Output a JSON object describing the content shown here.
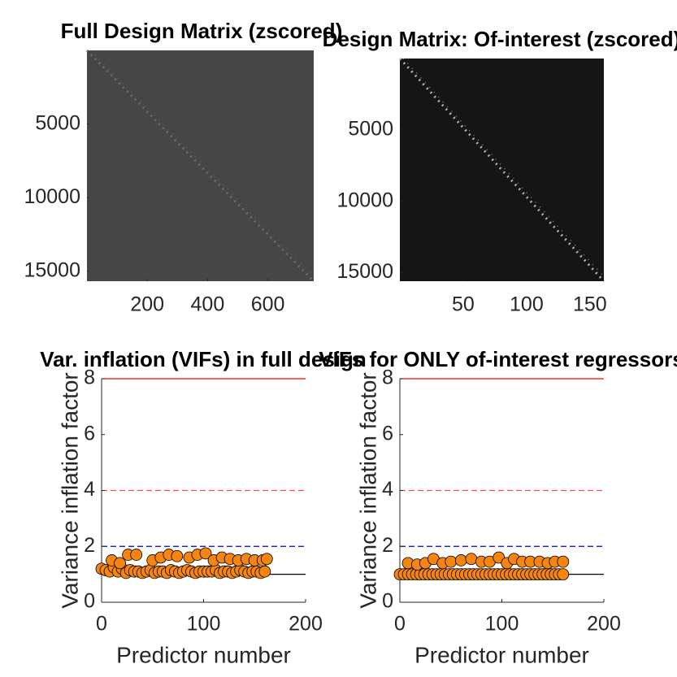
{
  "chart_data": [
    {
      "type": "image",
      "title": "Full Design Matrix (zscored)",
      "xlim": [
        0,
        752
      ],
      "ylim": [
        0,
        15660
      ],
      "y_reversed": true,
      "xticks": [
        200,
        400,
        600
      ],
      "yticks": [
        5000,
        10000,
        15000
      ],
      "color": "#464646",
      "diagonal_color": "#6a6a6a"
    },
    {
      "type": "image",
      "title": "Design Matrix: Of-interest (zscored)",
      "xlim": [
        0,
        161
      ],
      "ylim": [
        0,
        15600
      ],
      "y_reversed": true,
      "xticks": [
        50,
        100,
        150
      ],
      "yticks": [
        5000,
        10000,
        15000
      ],
      "color": "#151515",
      "diagonal_color": "#b0b0b0"
    },
    {
      "type": "scatter",
      "title": "Var. inflation (VIFs) in full design",
      "x_label": "Predictor number",
      "y_label": "Variance inflation factor",
      "xlim": [
        0,
        200
      ],
      "ylim": [
        0,
        8
      ],
      "xticks": [
        0,
        100,
        200
      ],
      "yticks": [
        0,
        2,
        4,
        6,
        8
      ],
      "color": "#f5850f",
      "edgecolor": "#000000",
      "reference_lines": [
        {
          "value": 8,
          "color": "#ff0000",
          "style": "solid"
        },
        {
          "value": 4,
          "color": "#ff4d4d",
          "style": "dashed"
        },
        {
          "value": 2,
          "color": "#0000cc",
          "style": "dashed"
        },
        {
          "value": 1,
          "color": "#000000",
          "style": "solid"
        }
      ],
      "x": [
        0,
        4,
        8,
        12,
        16,
        20,
        24,
        28,
        32,
        36,
        40,
        44,
        48,
        52,
        56,
        60,
        64,
        68,
        72,
        76,
        80,
        84,
        88,
        92,
        96,
        100,
        104,
        108,
        112,
        116,
        120,
        124,
        128,
        132,
        136,
        140,
        144,
        148,
        152,
        156,
        160,
        10,
        18,
        26,
        34,
        50,
        58,
        66,
        74,
        86,
        94,
        102,
        110,
        118,
        126,
        134,
        142,
        150,
        158,
        162
      ],
      "values": [
        1.2,
        1.15,
        1.1,
        1.25,
        1.1,
        1.2,
        1.05,
        1.15,
        1.1,
        1.1,
        1.05,
        1.1,
        1.15,
        1.05,
        1.1,
        1.1,
        1.05,
        1.15,
        1.1,
        1.05,
        1.1,
        1.15,
        1.1,
        1.05,
        1.1,
        1.1,
        1.1,
        1.1,
        1.15,
        1.05,
        1.1,
        1.1,
        1.05,
        1.1,
        1.15,
        1.1,
        1.05,
        1.1,
        1.1,
        1.05,
        1.1,
        1.5,
        1.4,
        1.7,
        1.7,
        1.5,
        1.6,
        1.7,
        1.65,
        1.6,
        1.7,
        1.75,
        1.5,
        1.6,
        1.55,
        1.5,
        1.55,
        1.5,
        1.5,
        1.55
      ]
    },
    {
      "type": "scatter",
      "title": "VIFs for ONLY of-interest regressors",
      "x_label": "Predictor number",
      "y_label": "Variance inflation factor",
      "xlim": [
        0,
        200
      ],
      "ylim": [
        0,
        8
      ],
      "xticks": [
        0,
        100,
        200
      ],
      "yticks": [
        0,
        2,
        4,
        6,
        8
      ],
      "color": "#f5850f",
      "edgecolor": "#000000",
      "reference_lines": [
        {
          "value": 8,
          "color": "#ff0000",
          "style": "solid"
        },
        {
          "value": 4,
          "color": "#ff4d4d",
          "style": "dashed"
        },
        {
          "value": 2,
          "color": "#0000cc",
          "style": "dashed"
        },
        {
          "value": 1,
          "color": "#000000",
          "style": "solid"
        }
      ],
      "x": [
        0,
        4,
        8,
        12,
        16,
        20,
        24,
        28,
        32,
        36,
        40,
        44,
        48,
        52,
        56,
        60,
        64,
        68,
        72,
        76,
        80,
        84,
        88,
        92,
        96,
        100,
        104,
        108,
        112,
        116,
        120,
        124,
        128,
        132,
        136,
        140,
        144,
        148,
        152,
        156,
        160,
        8,
        17,
        25,
        33,
        42,
        50,
        60,
        70,
        80,
        88,
        97,
        105,
        112,
        120,
        128,
        137,
        145,
        152,
        160
      ],
      "values": [
        1,
        1,
        1,
        1,
        1,
        1,
        1,
        1,
        1,
        1,
        1,
        1,
        1,
        1,
        1,
        1,
        1,
        1,
        1,
        1,
        1,
        1,
        1,
        1,
        1,
        1,
        1,
        1,
        1,
        1,
        1,
        1,
        1,
        1,
        1,
        1,
        1,
        1,
        1,
        1,
        1,
        1.4,
        1.35,
        1.4,
        1.55,
        1.4,
        1.45,
        1.5,
        1.55,
        1.45,
        1.45,
        1.6,
        1.4,
        1.55,
        1.45,
        1.45,
        1.45,
        1.4,
        1.45,
        1.45
      ]
    }
  ]
}
